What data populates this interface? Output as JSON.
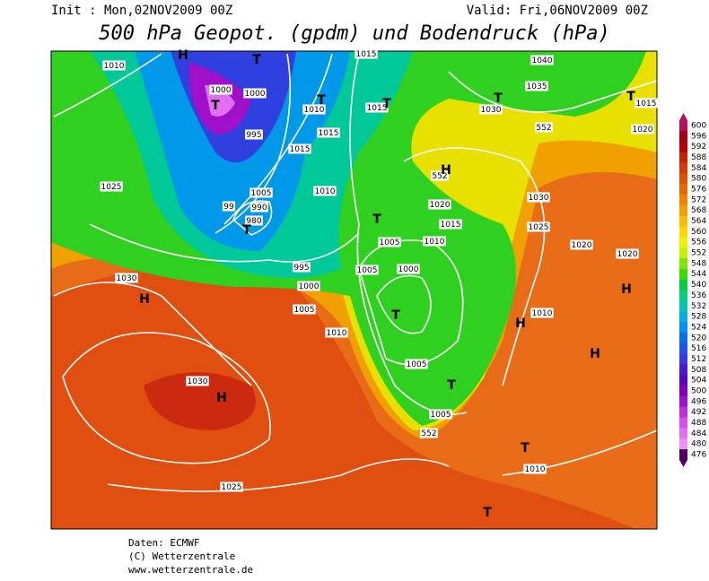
{
  "header": {
    "init": "Init : Mon,02NOV2009 00Z",
    "valid": "Valid: Fri,06NOV2009 00Z",
    "title": "500 hPa Geopot. (gpdm) und Bodendruck (hPa)"
  },
  "legend": {
    "levels": [
      600,
      596,
      592,
      588,
      584,
      580,
      576,
      572,
      568,
      564,
      560,
      556,
      552,
      548,
      544,
      540,
      536,
      532,
      528,
      524,
      520,
      516,
      512,
      508,
      504,
      500,
      496,
      492,
      488,
      484,
      480,
      476
    ],
    "colors": [
      "#b8105c",
      "#a00018",
      "#b80400",
      "#c82000",
      "#d83800",
      "#e05000",
      "#e86800",
      "#f08400",
      "#f5a000",
      "#fabc00",
      "#ffd800",
      "#f0f000",
      "#c8f000",
      "#80e800",
      "#40dc00",
      "#00d040",
      "#00d080",
      "#00c8b8",
      "#00b0e0",
      "#0090f0",
      "#0070f0",
      "#2050f0",
      "#3838e0",
      "#4818d0",
      "#6000c0",
      "#8000b8",
      "#a010c8",
      "#c030d8",
      "#d850e8",
      "#e870f0",
      "#f090f8",
      "#500060"
    ]
  },
  "map": {
    "labels": [
      "1010",
      "1000",
      "1000",
      "995",
      "1015",
      "1010",
      "1015",
      "1015",
      "1015",
      "1040",
      "1035",
      "1030",
      "552",
      "1015",
      "1020",
      "1025",
      "1005",
      "990",
      "980",
      "99",
      "1010",
      "1020",
      "1015",
      "1010",
      "1005",
      "1005",
      "1000",
      "1030",
      "1025",
      "1020",
      "1020",
      "552",
      "1030",
      "995",
      "1000",
      "1005",
      "1010",
      "1010",
      "1005",
      "1005",
      "552",
      "1030",
      "1025",
      "1010"
    ],
    "markers": [
      "T",
      "T",
      "T",
      "T",
      "T",
      "T",
      "T",
      "T",
      "T",
      "T",
      "T",
      "T",
      "H",
      "H",
      "H",
      "H",
      "H",
      "H",
      "H"
    ]
  },
  "footer": [
    "Daten: ECMWF",
    "(C) Wetterzentrale",
    "www.wetterzentrale.de"
  ]
}
